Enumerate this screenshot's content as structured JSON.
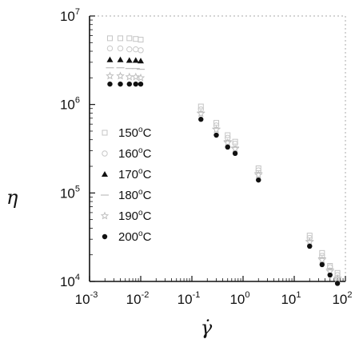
{
  "chart_data": {
    "type": "scatter",
    "xscale": "log",
    "yscale": "log",
    "xlim": [
      0.001,
      100
    ],
    "ylim": [
      10000,
      10000000
    ],
    "xlabel": "γ̇",
    "ylabel": "η",
    "x_ticks": [
      {
        "value": 0.001,
        "base": "10",
        "exp": "-3"
      },
      {
        "value": 0.01,
        "base": "10",
        "exp": "-2"
      },
      {
        "value": 0.1,
        "base": "10",
        "exp": "-1"
      },
      {
        "value": 1,
        "base": "10",
        "exp": "0"
      },
      {
        "value": 10,
        "base": "10",
        "exp": "1"
      },
      {
        "value": 100,
        "base": "10",
        "exp": "2"
      }
    ],
    "y_ticks": [
      {
        "value": 10000,
        "base": "10",
        "exp": "4"
      },
      {
        "value": 100000,
        "base": "10",
        "exp": "5"
      },
      {
        "value": 1000000,
        "base": "10",
        "exp": "6"
      },
      {
        "value": 10000000,
        "base": "10",
        "exp": "7"
      }
    ],
    "grid": false,
    "legend_position": "left",
    "series": [
      {
        "name": "150°C",
        "marker": "square",
        "color": "#c4c4c4",
        "x": [
          0.0025,
          0.004,
          0.006,
          0.008,
          0.01,
          0.15,
          0.3,
          0.5,
          0.7,
          2,
          20,
          35,
          50,
          70
        ],
        "y": [
          5600000,
          5600000,
          5600000,
          5500000,
          5400000,
          950000,
          620000,
          450000,
          380000,
          190000,
          33000,
          21000,
          15000,
          12500
        ]
      },
      {
        "name": "160°C",
        "marker": "circle-open",
        "color": "#c8c8c8",
        "x": [
          0.0025,
          0.004,
          0.006,
          0.008,
          0.01,
          0.15,
          0.3,
          0.5,
          0.7,
          2,
          20,
          35,
          50,
          70
        ],
        "y": [
          4300000,
          4300000,
          4200000,
          4200000,
          4100000,
          880000,
          580000,
          420000,
          360000,
          180000,
          31000,
          19500,
          14500,
          11800
        ]
      },
      {
        "name": "170°C",
        "marker": "triangle",
        "color": "#111111",
        "x": [
          0.0025,
          0.004,
          0.006,
          0.008,
          0.01
        ],
        "y": [
          3200000,
          3200000,
          3150000,
          3150000,
          3100000
        ]
      },
      {
        "name": "180°C",
        "marker": "dash",
        "color": "#bdbdbd",
        "x": [
          0.0025,
          0.004,
          0.006,
          0.008,
          0.01,
          0.15,
          0.3,
          0.5,
          0.7,
          2,
          20,
          35,
          50,
          70
        ],
        "y": [
          2600000,
          2600000,
          2550000,
          2550000,
          2500000,
          820000,
          540000,
          390000,
          330000,
          170000,
          29000,
          18500,
          13800,
          11200
        ]
      },
      {
        "name": "190°C",
        "marker": "star-open",
        "color": "#c0c0c0",
        "x": [
          0.0025,
          0.004,
          0.006,
          0.008,
          0.01,
          0.15,
          0.3,
          0.5,
          0.7,
          2,
          20,
          35,
          50,
          70
        ],
        "y": [
          2100000,
          2100000,
          2050000,
          2050000,
          2000000,
          790000,
          520000,
          370000,
          315000,
          160000,
          28000,
          17500,
          13000,
          10800
        ]
      },
      {
        "name": "200°C",
        "marker": "circle",
        "color": "#111111",
        "x": [
          0.0025,
          0.004,
          0.006,
          0.008,
          0.01,
          0.15,
          0.3,
          0.5,
          0.7,
          2,
          20,
          35,
          50,
          70
        ],
        "y": [
          1700000,
          1700000,
          1700000,
          1700000,
          1700000,
          680000,
          450000,
          330000,
          280000,
          140000,
          25000,
          15500,
          11800,
          9500
        ]
      }
    ]
  }
}
